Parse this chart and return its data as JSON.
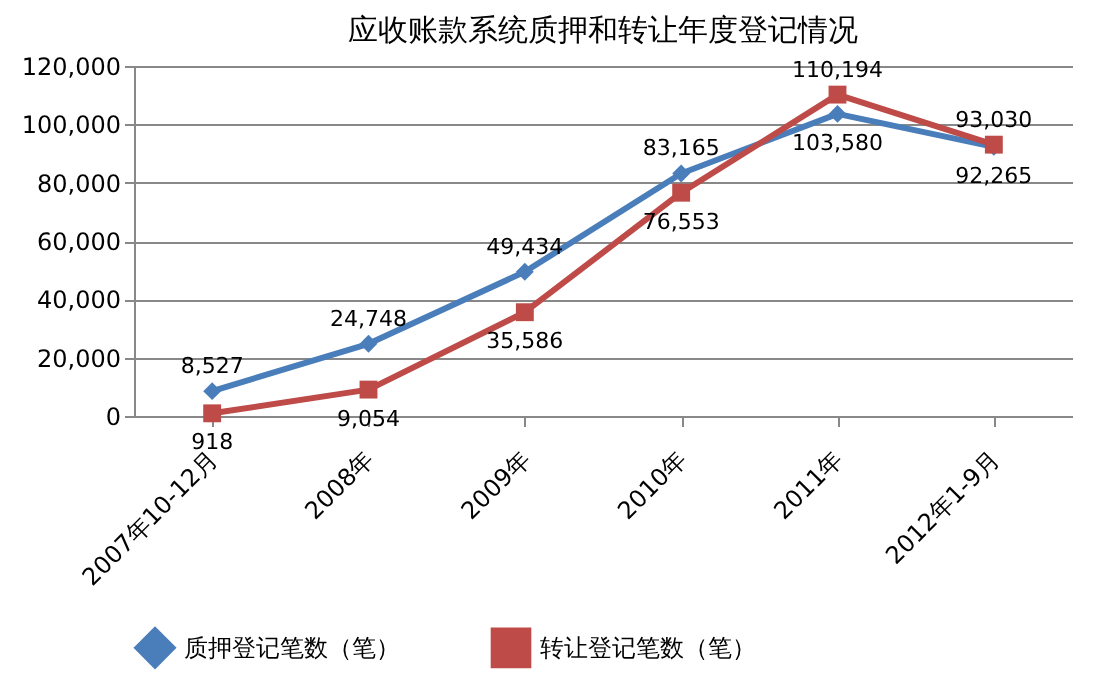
{
  "chart_data": {
    "type": "line",
    "title": "应收账款系统质押和转让年度登记情况",
    "categories": [
      "2007年10-12月",
      "2008年",
      "2009年",
      "2010年",
      "2011年",
      "2012年1-9月"
    ],
    "series": [
      {
        "name": "质押登记笔数（笔）",
        "color": "#4a7ebb",
        "marker": "diamond",
        "line_style": "solid",
        "values": [
          8527,
          24748,
          49434,
          83165,
          103580,
          92265
        ],
        "value_labels": [
          "8,527",
          "24,748",
          "49,434",
          "83,165",
          "103,580",
          "92,265"
        ]
      },
      {
        "name": "转让登记笔数（笔）",
        "color": "#be4b48",
        "marker": "square",
        "line_style": "solid",
        "values": [
          918,
          9054,
          35586,
          76553,
          110194,
          93030
        ],
        "value_labels": [
          "918",
          "9,054",
          "35,586",
          "76,553",
          "110,194",
          "93,030"
        ]
      }
    ],
    "ylim": [
      0,
      120000
    ],
    "yticks": [
      0,
      {
        "value": 20000,
        "label": "20,000"
      },
      {
        "value": 40000,
        "label": "40,000"
      },
      {
        "value": 60000,
        "label": "60,000"
      },
      {
        "value": 80000,
        "label": "80,000"
      },
      {
        "value": 100000,
        "label": "100,000"
      },
      {
        "value": 120000,
        "label": "120,000"
      }
    ],
    "grid": "y",
    "legend": "bottom"
  }
}
